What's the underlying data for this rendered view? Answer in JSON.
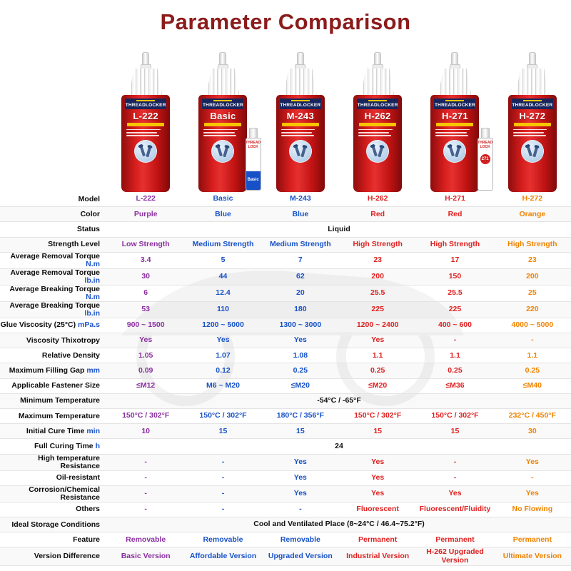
{
  "title": "Parameter Comparison",
  "colors": {
    "title": "#8c1c1c",
    "unit": "#1a53c9",
    "bottle_red": "#cf1717",
    "label_navy": "#18255c",
    "label_yellow": "#f7c500"
  },
  "bottle": {
    "brand": "THREADLOCKER"
  },
  "products": [
    {
      "model": "L-222",
      "color_name": "Purple",
      "text_color": "#8b2fa0",
      "tube": null
    },
    {
      "model": "Basic",
      "color_name": "Blue",
      "text_color": "#1651c8",
      "tube": {
        "lines": [
          "THREAD",
          "LOCK"
        ],
        "name": "Basic",
        "style": "blue"
      }
    },
    {
      "model": "M-243",
      "color_name": "Blue",
      "text_color": "#1651c8",
      "tube": null
    },
    {
      "model": "H-262",
      "color_name": "Red",
      "text_color": "#e02020",
      "tube": null
    },
    {
      "model": "H-271",
      "color_name": "Red",
      "text_color": "#e02020",
      "tube": {
        "lines": [
          "THREAD",
          "LOCK"
        ],
        "name": "271",
        "style": "red"
      }
    },
    {
      "model": "H-272",
      "color_name": "Orange",
      "text_color": "#f08300",
      "tube": null
    }
  ],
  "table": {
    "rows": [
      {
        "label": "Model",
        "values": [
          "L-222",
          "Basic",
          "M-243",
          "H-262",
          "H-271",
          "H-272"
        ]
      },
      {
        "label": "Color",
        "values": [
          "Purple",
          "Blue",
          "Blue",
          "Red",
          "Red",
          "Orange"
        ]
      },
      {
        "label": "Status",
        "span": "Liquid"
      },
      {
        "label": "Strength Level",
        "values": [
          "Low Strength",
          "Medium Strength",
          "Medium Strength",
          "High Strength",
          "High Strength",
          "High Strength"
        ]
      },
      {
        "label": "Average Removal Torque",
        "unit": "N.m",
        "values": [
          "3.4",
          "5",
          "7",
          "23",
          "17",
          "23"
        ]
      },
      {
        "label": "Average Removal Torque",
        "unit": "lb.in",
        "values": [
          "30",
          "44",
          "62",
          "200",
          "150",
          "200"
        ]
      },
      {
        "label": "Average Breaking Torque",
        "unit": "N.m",
        "values": [
          "6",
          "12.4",
          "20",
          "25.5",
          "25.5",
          "25"
        ]
      },
      {
        "label": "Average Breaking Torque",
        "unit": "lb.in",
        "values": [
          "53",
          "110",
          "180",
          "225",
          "225",
          "220"
        ]
      },
      {
        "label": "Glue Viscosity (25°C)",
        "unit": "mPa.s",
        "values": [
          "900 ~ 1500",
          "1200 ~ 5000",
          "1300 ~ 3000",
          "1200 ~ 2400",
          "400 ~ 600",
          "4000 ~ 5000"
        ]
      },
      {
        "label": "Viscosity Thixotropy",
        "values": [
          "Yes",
          "Yes",
          "Yes",
          "Yes",
          "-",
          "-"
        ]
      },
      {
        "label": "Relative Density",
        "values": [
          "1.05",
          "1.07",
          "1.08",
          "1.1",
          "1.1",
          "1.1"
        ]
      },
      {
        "label": "Maximum Filling Gap",
        "unit": "mm",
        "values": [
          "0.09",
          "0.12",
          "0.25",
          "0.25",
          "0.25",
          "0.25"
        ]
      },
      {
        "label": "Applicable Fastener Size",
        "values": [
          "≤M12",
          "M6 ~ M20",
          "≤M20",
          "≤M20",
          "≤M36",
          "≤M40"
        ]
      },
      {
        "label": "Minimum Temperature",
        "span": "-54°C / -65°F"
      },
      {
        "label": "Maximum Temperature",
        "values": [
          "150°C / 302°F",
          "150°C / 302°F",
          "180°C / 356°F",
          "150°C / 302°F",
          "150°C / 302°F",
          "232°C / 450°F"
        ]
      },
      {
        "label": "Initial Cure Time",
        "unit": "min",
        "values": [
          "10",
          "15",
          "15",
          "15",
          "15",
          "30"
        ]
      },
      {
        "label": "Full Curing Time",
        "unit": "h",
        "span": "24"
      },
      {
        "label": "High temperature Resistance",
        "values": [
          "-",
          "-",
          "Yes",
          "Yes",
          "-",
          "Yes"
        ]
      },
      {
        "label": "Oil-resistant",
        "values": [
          "-",
          "-",
          "Yes",
          "Yes",
          "-",
          "-"
        ]
      },
      {
        "label": "Corrosion/Chemical Resistance",
        "values": [
          "-",
          "-",
          "Yes",
          "Yes",
          "Yes",
          "Yes"
        ]
      },
      {
        "label": "Others",
        "values": [
          "-",
          "-",
          "-",
          "Fluorescent",
          "Fluorescent/Fluidity",
          "No Flowing"
        ]
      },
      {
        "label": "Ideal Storage Conditions",
        "span": "Cool and Ventilated Place (8~24°C / 46.4~75.2°F)"
      },
      {
        "label": "Feature",
        "values": [
          "Removable",
          "Removable",
          "Removable",
          "Permanent",
          "Permanent",
          "Permanent"
        ]
      },
      {
        "label": "Version Difference",
        "values": [
          "Basic Version",
          "Affordable Version",
          "Upgraded Version",
          "Industrial Version",
          "H-262 Upgraded Version",
          "Ultimate Version"
        ]
      }
    ]
  }
}
